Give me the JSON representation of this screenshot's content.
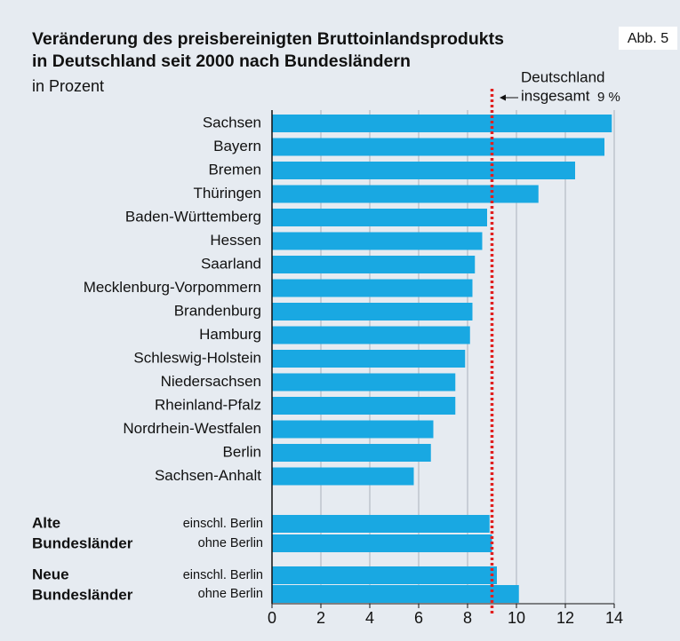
{
  "chart_data": {
    "type": "bar",
    "title_lines": [
      "Veränderung des preisbereinigten Bruttoinlandsprodukts",
      "in Deutschland seit 2000 nach Bundesländern"
    ],
    "subtitle": "in Prozent",
    "figure_label": "Abb. 5",
    "categories": [
      "Sachsen",
      "Bayern",
      "Bremen",
      "Thüringen",
      "Baden-Württemberg",
      "Hessen",
      "Saarland",
      "Mecklenburg-Vorpommern",
      "Brandenburg",
      "Hamburg",
      "Schleswig-Holstein",
      "Niedersachsen",
      "Rheinland-Pfalz",
      "Nordrhein-Westfalen",
      "Berlin",
      "Sachsen-Anhalt"
    ],
    "values": [
      13.9,
      13.6,
      12.4,
      10.9,
      8.8,
      8.6,
      8.3,
      8.2,
      8.2,
      8.1,
      7.9,
      7.5,
      7.5,
      6.6,
      6.5,
      5.8
    ],
    "groups": [
      {
        "name_lines": [
          "Alte",
          "Bundesländer"
        ],
        "categories": [
          "einschl. Berlin",
          "ohne Berlin"
        ],
        "values": [
          8.9,
          9.0
        ]
      },
      {
        "name_lines": [
          "Neue",
          "Bundesländer"
        ],
        "categories": [
          "einschl. Berlin",
          "ohne Berlin"
        ],
        "values": [
          9.2,
          10.1
        ]
      }
    ],
    "reference": {
      "value": 9,
      "label_lines": [
        "Deutschland",
        "insgesamt"
      ],
      "value_label": "9 %",
      "color": "#e02020"
    },
    "color": "#19a8e2",
    "xlim": [
      0,
      14
    ],
    "xticks": [
      0,
      2,
      4,
      6,
      8,
      10,
      12,
      14
    ],
    "grid": true
  }
}
